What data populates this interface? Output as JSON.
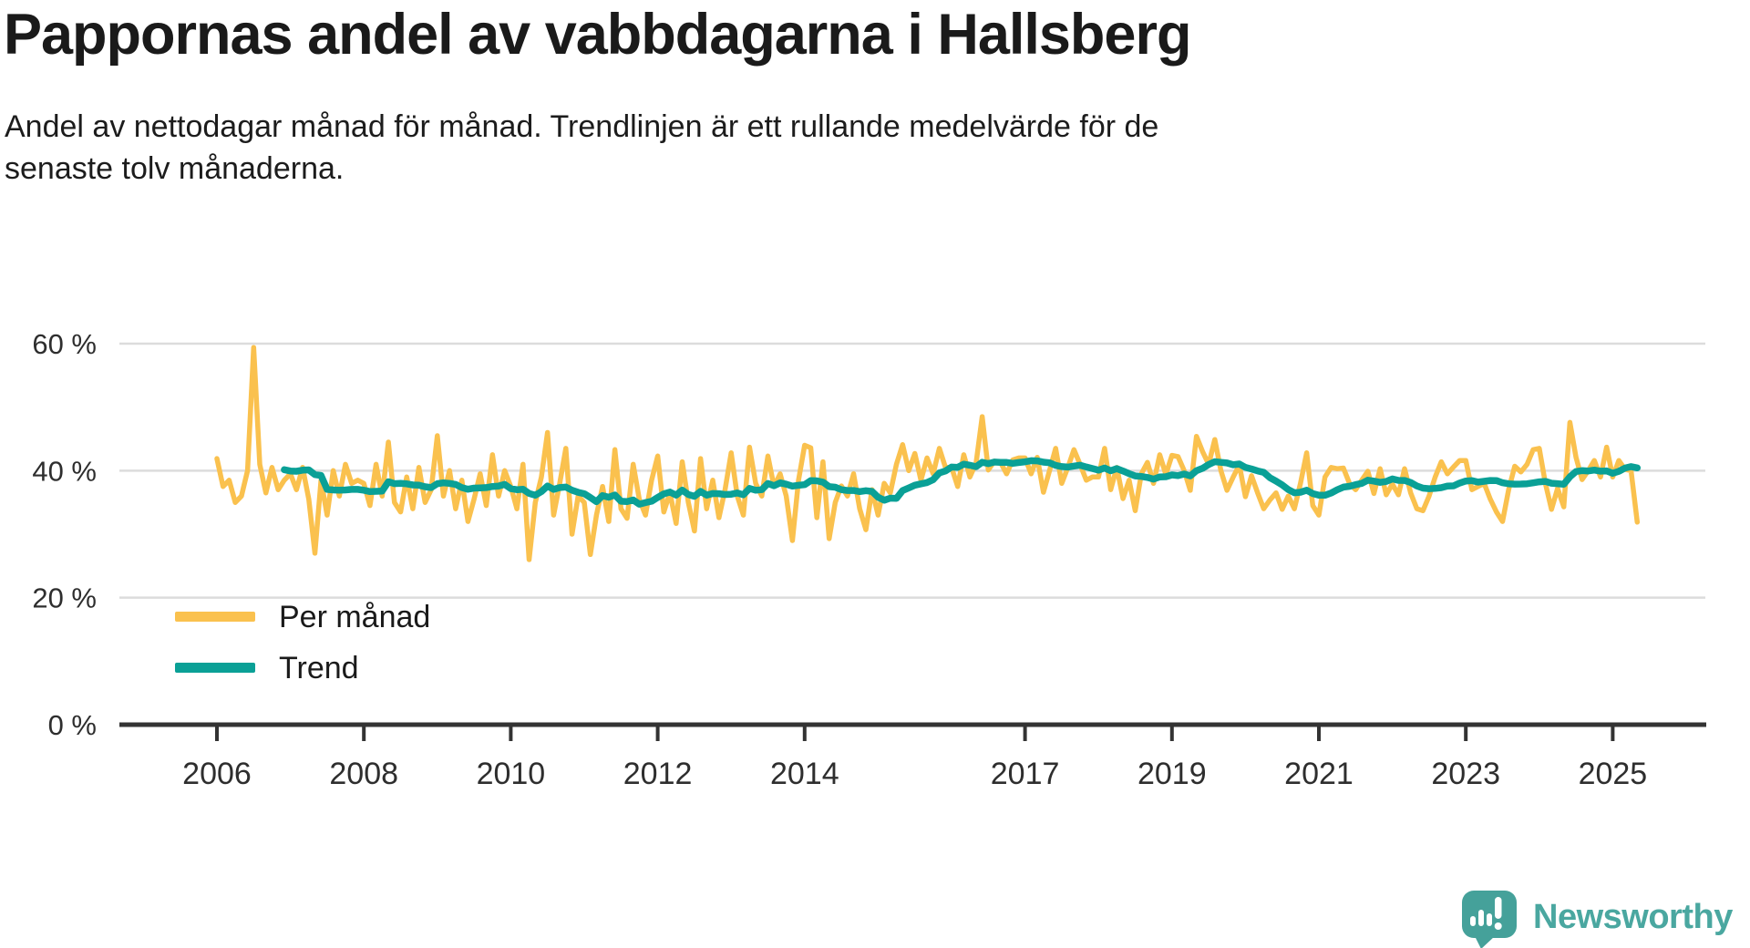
{
  "title": "Pappornas andel av vabbdagarna i Hallsberg",
  "subtitle": {
    "line1": "Andel av nettodagar månad för månad. Trendlinjen är ett rullande medelvärde för de",
    "line2": "senaste tolv månaderna.",
    "full": "Andel av nettodagar månad för månad. Trendlinjen är ett rullande medelvärde för de senaste tolv månaderna."
  },
  "y_axis": {
    "ticks": [
      {
        "label": "60 %",
        "value": 60
      },
      {
        "label": "40 %",
        "value": 40
      },
      {
        "label": "20 %",
        "value": 20
      },
      {
        "label": "0 %",
        "value": 0
      }
    ]
  },
  "x_axis": {
    "ticks": [
      2006,
      2008,
      2010,
      2012,
      2014,
      2017,
      2019,
      2021,
      2023,
      2025
    ]
  },
  "legend": {
    "items": [
      {
        "label": "Per månad",
        "color": "#FAC14E"
      },
      {
        "label": "Trend",
        "color": "#0AA096"
      }
    ]
  },
  "branding": {
    "wordmark": "Newsworthy",
    "logo_color": "#45A19A",
    "wordmark_color": "#4AA7A0"
  },
  "colors": {
    "monthly_line": "#FAC14E",
    "trend_line": "#0AA096",
    "gridline": "#dcdcdc",
    "axis": "#333333",
    "text": "#1a1a1a"
  },
  "chart_data": {
    "type": "line",
    "title": "Pappornas andel av vabbdagarna i Hallsberg",
    "unit": "%",
    "x_start": "2006-01",
    "x_end": "2025-05",
    "frequency": "monthly",
    "ylim": [
      0,
      62
    ],
    "grid": "horizontal",
    "legend_position": "inside-bottom-left",
    "series": [
      {
        "name": "Per månad",
        "color": "#FAC14E",
        "values": [
          41.9,
          37.5,
          38.5,
          35,
          36,
          40,
          59.4,
          41,
          36.5,
          40.5,
          37,
          38.5,
          39.5,
          37,
          40.5,
          35.5,
          27,
          38.5,
          33,
          40,
          36,
          41,
          38,
          38.5,
          38,
          34.5,
          41,
          36,
          44.5,
          35,
          33.5,
          39,
          34,
          40.5,
          35,
          37,
          45.5,
          36,
          40,
          34,
          38.5,
          32,
          35.5,
          39.5,
          34.5,
          42.5,
          36,
          40,
          37.5,
          34,
          41,
          26,
          35,
          39,
          46,
          33,
          38,
          43.5,
          30,
          36,
          35,
          26.8,
          33,
          37.5,
          32,
          43.3,
          34,
          32.5,
          41,
          35.5,
          33,
          38.5,
          42.3,
          33.5,
          36.5,
          31.7,
          41.4,
          35,
          30.5,
          41.9,
          34,
          38.5,
          32.6,
          37,
          42.8,
          36,
          33,
          43.7,
          38,
          36,
          42.3,
          37.5,
          39.5,
          36,
          29,
          38.5,
          44,
          43.6,
          32.6,
          41.4,
          29.3,
          35,
          37.6,
          36,
          39.5,
          34,
          30.7,
          37,
          33,
          38,
          36.5,
          41,
          44.1,
          40,
          42.7,
          38.5,
          42,
          39.5,
          43.5,
          40.5,
          40.5,
          37.5,
          42.5,
          39,
          41.2,
          48.5,
          40.1,
          41.5,
          41.3,
          39.5,
          41.7,
          42,
          42,
          39.5,
          42.1,
          36.6,
          40,
          43.5,
          38,
          40.5,
          43.3,
          41,
          38.5,
          39,
          39,
          43.5,
          37,
          40.5,
          35.6,
          38.5,
          33.7,
          39.5,
          41.3,
          38,
          42.5,
          39.4,
          42.4,
          42.2,
          40,
          36.9,
          45.4,
          43,
          41,
          44.9,
          40,
          36.9,
          39,
          40.9,
          35.9,
          39.2,
          36.5,
          34,
          35.4,
          36.5,
          33.9,
          36,
          34,
          38,
          42.8,
          34.5,
          33,
          39,
          40.5,
          40.3,
          40.4,
          38,
          37,
          38.5,
          39.9,
          36.4,
          40.3,
          36.2,
          37.9,
          36.2,
          40.3,
          36.5,
          34,
          33.7,
          36,
          39,
          41.4,
          39.5,
          40.6,
          41.6,
          41.6,
          37,
          37.5,
          38,
          35.5,
          33.5,
          32,
          37,
          40.7,
          39.8,
          41,
          43.3,
          43.5,
          38,
          33.9,
          37.2,
          34.3,
          47.6,
          42.1,
          38.6,
          40,
          41.6,
          39,
          43.7,
          39,
          41.6,
          40.2,
          40,
          31.9
        ]
      },
      {
        "name": "Trend",
        "color": "#0AA096",
        "derivation": "rolling mean of the latest 12 months of series 'Per månad', drawn from 2006-12 onward"
      }
    ]
  }
}
